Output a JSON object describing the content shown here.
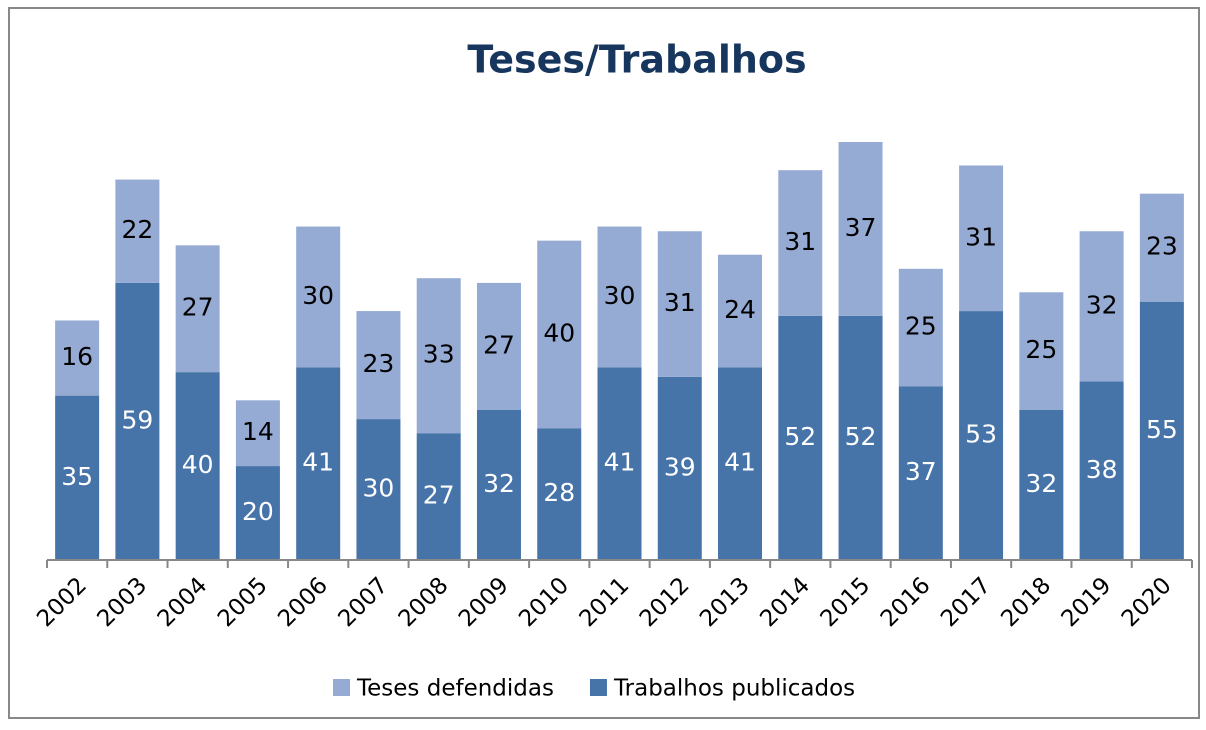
{
  "chart_data": {
    "type": "stacked-bar",
    "title": "Teses/Trabalhos",
    "categories": [
      "2002",
      "2003",
      "2004",
      "2005",
      "2006",
      "2007",
      "2008",
      "2009",
      "2010",
      "2011",
      "2012",
      "2013",
      "2014",
      "2015",
      "2016",
      "2017",
      "2018",
      "2019",
      "2020"
    ],
    "series": [
      {
        "name": "Trabalhos publicados",
        "color": "#4673a8",
        "values": [
          35,
          59,
          40,
          20,
          41,
          30,
          27,
          32,
          28,
          41,
          39,
          41,
          52,
          52,
          37,
          53,
          32,
          38,
          55
        ]
      },
      {
        "name": "Teses defendidas",
        "color": "#95abd4",
        "values": [
          16,
          22,
          27,
          14,
          30,
          23,
          33,
          27,
          40,
          30,
          31,
          24,
          31,
          37,
          25,
          31,
          25,
          32,
          23
        ]
      }
    ],
    "legend": "bottom"
  }
}
